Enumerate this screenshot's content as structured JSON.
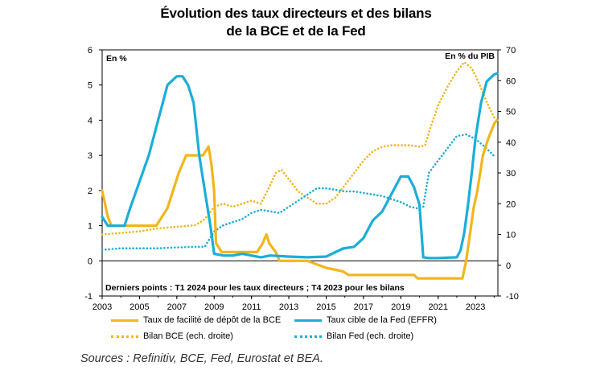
{
  "title_line1": "Évolution des taux directeurs et des bilans",
  "title_line2": "de la BCE et de la Fed",
  "source": "Sources : Refinitiv, BCE, Fed, Eurostat et BEA.",
  "chart_data": {
    "type": "line",
    "title": "Évolution des taux directeurs et des bilans de la BCE et de la Fed",
    "y_left_label": "En %",
    "y_right_label": "En % du PIB",
    "annotation": "Derniers points : T1 2024 pour les taux directeurs ; T4 2023 pour les bilans",
    "xlim": [
      2003,
      2024.2
    ],
    "ylim_left": [
      -1,
      6
    ],
    "ylim_right": [
      -10,
      70
    ],
    "x_ticks": [
      "2003",
      "2005",
      "2007",
      "2009",
      "2011",
      "2013",
      "2015",
      "2017",
      "2019",
      "2021",
      "2023"
    ],
    "y_left_ticks": [
      "-1",
      "0",
      "1",
      "2",
      "3",
      "4",
      "5",
      "6"
    ],
    "y_right_ticks": [
      "-10",
      "0",
      "10",
      "20",
      "30",
      "40",
      "50",
      "60",
      "70"
    ],
    "grid": false,
    "legend_position": "bottom",
    "colors": {
      "ecb": "#f2b61b",
      "fed": "#1aaed8"
    },
    "series": [
      {
        "name": "Taux de facilité de dépôt de la BCE",
        "axis": "left",
        "style": "solid",
        "color": "#f2b61b",
        "x": [
          2003.0,
          2003.3,
          2003.5,
          2005.9,
          2006.2,
          2006.5,
          2006.8,
          2007.1,
          2007.5,
          2008.0,
          2008.4,
          2008.7,
          2008.85,
          2009.0,
          2009.1,
          2009.4,
          2011.3,
          2011.6,
          2011.8,
          2011.95,
          2012.3,
          2012.5,
          2012.8,
          2013.8,
          2014.0,
          2014.5,
          2015.0,
          2015.9,
          2016.2,
          2019.7,
          2019.9,
          2022.3,
          2022.5,
          2022.7,
          2022.9,
          2023.1,
          2023.4,
          2023.7,
          2024.0,
          2024.15
        ],
        "y": [
          2.0,
          1.25,
          1.0,
          1.0,
          1.25,
          1.5,
          2.0,
          2.5,
          3.0,
          3.0,
          3.0,
          3.25,
          2.75,
          2.0,
          0.5,
          0.25,
          0.25,
          0.5,
          0.75,
          0.5,
          0.25,
          0.0,
          0.0,
          0.0,
          0.0,
          -0.1,
          -0.2,
          -0.3,
          -0.4,
          -0.4,
          -0.5,
          -0.5,
          0.0,
          0.75,
          1.5,
          2.0,
          3.0,
          3.5,
          3.9,
          4.0
        ]
      },
      {
        "name": "Taux cible de la Fed (EFFR)",
        "axis": "left",
        "style": "solid",
        "color": "#1aaed8",
        "x": [
          2003.0,
          2003.3,
          2003.5,
          2004.2,
          2004.5,
          2005.0,
          2005.5,
          2006.0,
          2006.5,
          2007.0,
          2007.3,
          2007.6,
          2007.9,
          2008.2,
          2008.5,
          2008.8,
          2009.0,
          2009.5,
          2010.0,
          2010.5,
          2011.0,
          2011.5,
          2012.0,
          2013.0,
          2014.0,
          2015.0,
          2015.9,
          2016.5,
          2017.0,
          2017.5,
          2018.0,
          2018.5,
          2019.0,
          2019.4,
          2019.7,
          2020.0,
          2020.2,
          2020.5,
          2021.0,
          2022.0,
          2022.2,
          2022.4,
          2022.6,
          2022.8,
          2023.0,
          2023.3,
          2023.6,
          2024.0,
          2024.15
        ],
        "y": [
          1.25,
          1.0,
          1.0,
          1.0,
          1.5,
          2.25,
          3.0,
          4.0,
          5.0,
          5.25,
          5.25,
          5.0,
          4.5,
          3.0,
          2.0,
          1.0,
          0.2,
          0.15,
          0.15,
          0.2,
          0.15,
          0.1,
          0.15,
          0.12,
          0.1,
          0.12,
          0.35,
          0.4,
          0.65,
          1.15,
          1.4,
          1.9,
          2.4,
          2.4,
          2.1,
          1.6,
          0.1,
          0.08,
          0.08,
          0.1,
          0.3,
          0.8,
          1.6,
          2.5,
          3.5,
          4.5,
          5.1,
          5.3,
          5.33
        ]
      },
      {
        "name": "Bilan BCE (ech. droite)",
        "axis": "right",
        "style": "dotted",
        "color": "#f2b61b",
        "x": [
          2003.0,
          2004.0,
          2005.0,
          2006.0,
          2007.0,
          2008.0,
          2008.5,
          2009.0,
          2009.5,
          2010.0,
          2010.5,
          2011.0,
          2011.5,
          2012.0,
          2012.3,
          2012.6,
          2013.0,
          2013.5,
          2014.0,
          2014.5,
          2015.0,
          2015.5,
          2016.0,
          2016.5,
          2017.0,
          2017.5,
          2018.0,
          2018.5,
          2019.0,
          2019.5,
          2020.0,
          2020.3,
          2020.6,
          2021.0,
          2021.5,
          2022.0,
          2022.4,
          2022.8,
          2023.2,
          2023.6,
          2024.0
        ],
        "y": [
          10,
          10.5,
          11,
          12,
          12.5,
          13,
          15,
          19,
          20,
          19,
          20,
          21,
          20,
          26,
          30,
          31,
          28,
          24,
          22,
          20,
          20,
          22,
          26,
          30,
          34,
          37,
          38.5,
          39,
          39,
          39,
          38.5,
          39,
          45,
          52,
          58,
          63,
          66,
          64,
          59,
          53,
          48
        ]
      },
      {
        "name": "Bilan Fed (ech. droite)",
        "axis": "right",
        "style": "dotted",
        "color": "#1aaed8",
        "x": [
          2003.0,
          2004.0,
          2005.0,
          2006.0,
          2007.0,
          2008.0,
          2008.5,
          2009.0,
          2009.5,
          2010.0,
          2010.5,
          2011.0,
          2011.5,
          2012.0,
          2012.5,
          2013.0,
          2013.5,
          2014.0,
          2014.5,
          2015.0,
          2015.5,
          2016.0,
          2016.5,
          2017.0,
          2017.5,
          2018.0,
          2018.5,
          2019.0,
          2019.5,
          2019.9,
          2020.2,
          2020.5,
          2021.0,
          2021.5,
          2022.0,
          2022.5,
          2023.0,
          2023.5,
          2024.0
        ],
        "y": [
          5,
          5.5,
          5.5,
          5.5,
          5.8,
          6,
          6,
          11,
          13,
          14,
          15,
          17,
          18,
          17.5,
          17,
          19,
          21,
          23,
          25,
          25,
          24.5,
          24,
          24,
          23.5,
          23,
          22.5,
          21.5,
          20.5,
          19,
          18.5,
          19,
          30,
          34,
          38,
          42,
          42.5,
          41,
          38.5,
          35.5
        ]
      }
    ]
  }
}
